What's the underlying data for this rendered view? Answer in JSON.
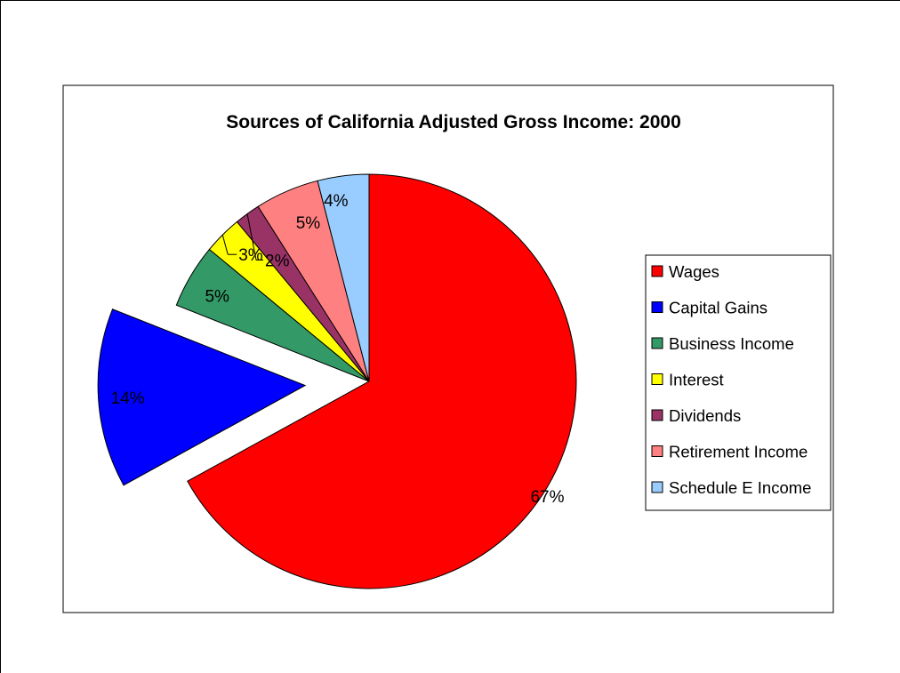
{
  "chart_data": {
    "type": "pie",
    "title": "Sources of California Adjusted Gross Income: 2000",
    "legend_position": "right",
    "exploded_slice": "Capital Gains",
    "slices": [
      {
        "name": "Wages",
        "value": 67,
        "label": "67%",
        "color": "#FF0000"
      },
      {
        "name": "Capital Gains",
        "value": 14,
        "label": "14%",
        "color": "#0000FF"
      },
      {
        "name": "Business Income",
        "value": 5,
        "label": "5%",
        "color": "#339966"
      },
      {
        "name": "Interest",
        "value": 3,
        "label": "3%",
        "color": "#FFFF00"
      },
      {
        "name": "Dividends",
        "value": 2,
        "label": "2%",
        "color": "#993366"
      },
      {
        "name": "Retirement Income",
        "value": 5,
        "label": "5%",
        "color": "#FF8080"
      },
      {
        "name": "Schedule E Income",
        "value": 4,
        "label": "4%",
        "color": "#99CCFF"
      }
    ]
  }
}
